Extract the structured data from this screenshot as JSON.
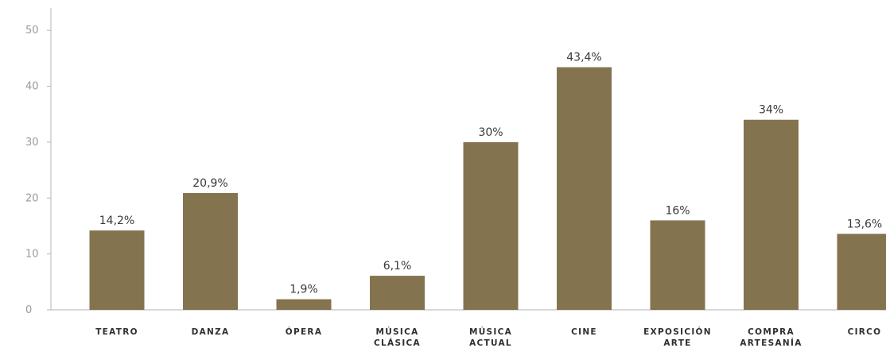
{
  "chart_data": {
    "type": "bar",
    "categories": [
      [
        "TEATRO"
      ],
      [
        "DANZA"
      ],
      [
        "ÓPERA"
      ],
      [
        "MÚSICA",
        "CLÁSICA"
      ],
      [
        "MÚSICA",
        "ACTUAL"
      ],
      [
        "CINE"
      ],
      [
        "EXPOSICIÓN",
        "ARTE"
      ],
      [
        "COMPRA",
        "ARTESANÍA"
      ],
      [
        "CIRCO"
      ]
    ],
    "values": [
      14.2,
      20.9,
      1.9,
      6.1,
      30,
      43.4,
      16,
      34,
      13.6
    ],
    "data_labels": [
      "14,2%",
      "20,9%",
      "1,9%",
      "6,1%",
      "30%",
      "43,4%",
      "16%",
      "34%",
      "13,6%"
    ],
    "yticks": [
      0,
      10,
      20,
      30,
      40,
      50
    ],
    "ylim": [
      0,
      54
    ],
    "title": "",
    "xlabel": "",
    "ylabel": "",
    "grid": false,
    "bar_color": "#84734f",
    "axis_color": "#b5b5b5"
  }
}
